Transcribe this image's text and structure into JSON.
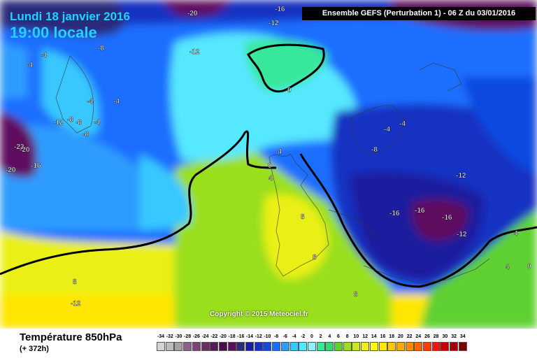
{
  "header": {
    "date": "Lundi 18 janvier 2016",
    "time": "19:00 locale",
    "model": "Ensemble GEFS  (Perturbation 1)  -  06 Z du 03/01/2016"
  },
  "footer": {
    "parameter": "Température 850hPa",
    "lead_time": "(+ 372h)",
    "copyright": "Copyright © 2015 Meteociel.fr"
  },
  "legend": {
    "labels": [
      "-34",
      "-32",
      "-30",
      "-28",
      "-26",
      "-24",
      "-22",
      "-20",
      "-18",
      "-16",
      "-14",
      "-12",
      "-10",
      "-8",
      "-6",
      "-4",
      "-2",
      "0",
      "2",
      "4",
      "6",
      "8",
      "10",
      "12",
      "14",
      "16",
      "18",
      "20",
      "22",
      "24",
      "26",
      "28",
      "30",
      "32",
      "34"
    ],
    "colors": [
      "#d4d4d4",
      "#bcbcbc",
      "#a3a3a3",
      "#8c5f8c",
      "#7d4478",
      "#6b2c66",
      "#5a1a56",
      "#4a0f48",
      "#5e0d5e",
      "#2a2a7a",
      "#1c1c9e",
      "#1530c2",
      "#1048e0",
      "#1c6eff",
      "#2e9bff",
      "#39c8ff",
      "#56e8ff",
      "#8fefff",
      "#38e89a",
      "#38d66e",
      "#5ed030",
      "#9adf1e",
      "#c8e81c",
      "#eaf018",
      "#ffff00",
      "#ffe600",
      "#ffc800",
      "#ffaa00",
      "#ff8c00",
      "#ff6600",
      "#ff3c00",
      "#f01414",
      "#c80000",
      "#a00000",
      "#780000"
    ]
  },
  "map": {
    "isotherm_labels": [
      {
        "text": "-20"
      },
      {
        "text": "-16"
      },
      {
        "text": "-12"
      },
      {
        "text": "-8"
      },
      {
        "text": "-12"
      },
      {
        "text": "-4"
      },
      {
        "text": "-4"
      },
      {
        "text": "-4"
      },
      {
        "text": "-4"
      },
      {
        "text": "-12"
      },
      {
        "text": "-8"
      },
      {
        "text": "-8"
      },
      {
        "text": "-4"
      },
      {
        "text": "-8"
      },
      {
        "text": "-22"
      },
      {
        "text": "-20"
      },
      {
        "text": "-16"
      },
      {
        "text": "-20"
      },
      {
        "text": "0"
      },
      {
        "text": "-4"
      },
      {
        "text": "-4"
      },
      {
        "text": "-4"
      },
      {
        "text": "-8"
      },
      {
        "text": "0"
      },
      {
        "text": "4"
      },
      {
        "text": "-12"
      },
      {
        "text": "-16"
      },
      {
        "text": "-16"
      },
      {
        "text": "-16"
      },
      {
        "text": "-12"
      },
      {
        "text": "8"
      },
      {
        "text": "8"
      },
      {
        "text": "8"
      },
      {
        "text": "-12"
      },
      {
        "text": "8"
      },
      {
        "text": "4"
      },
      {
        "text": "0"
      },
      {
        "text": "4"
      }
    ]
  }
}
